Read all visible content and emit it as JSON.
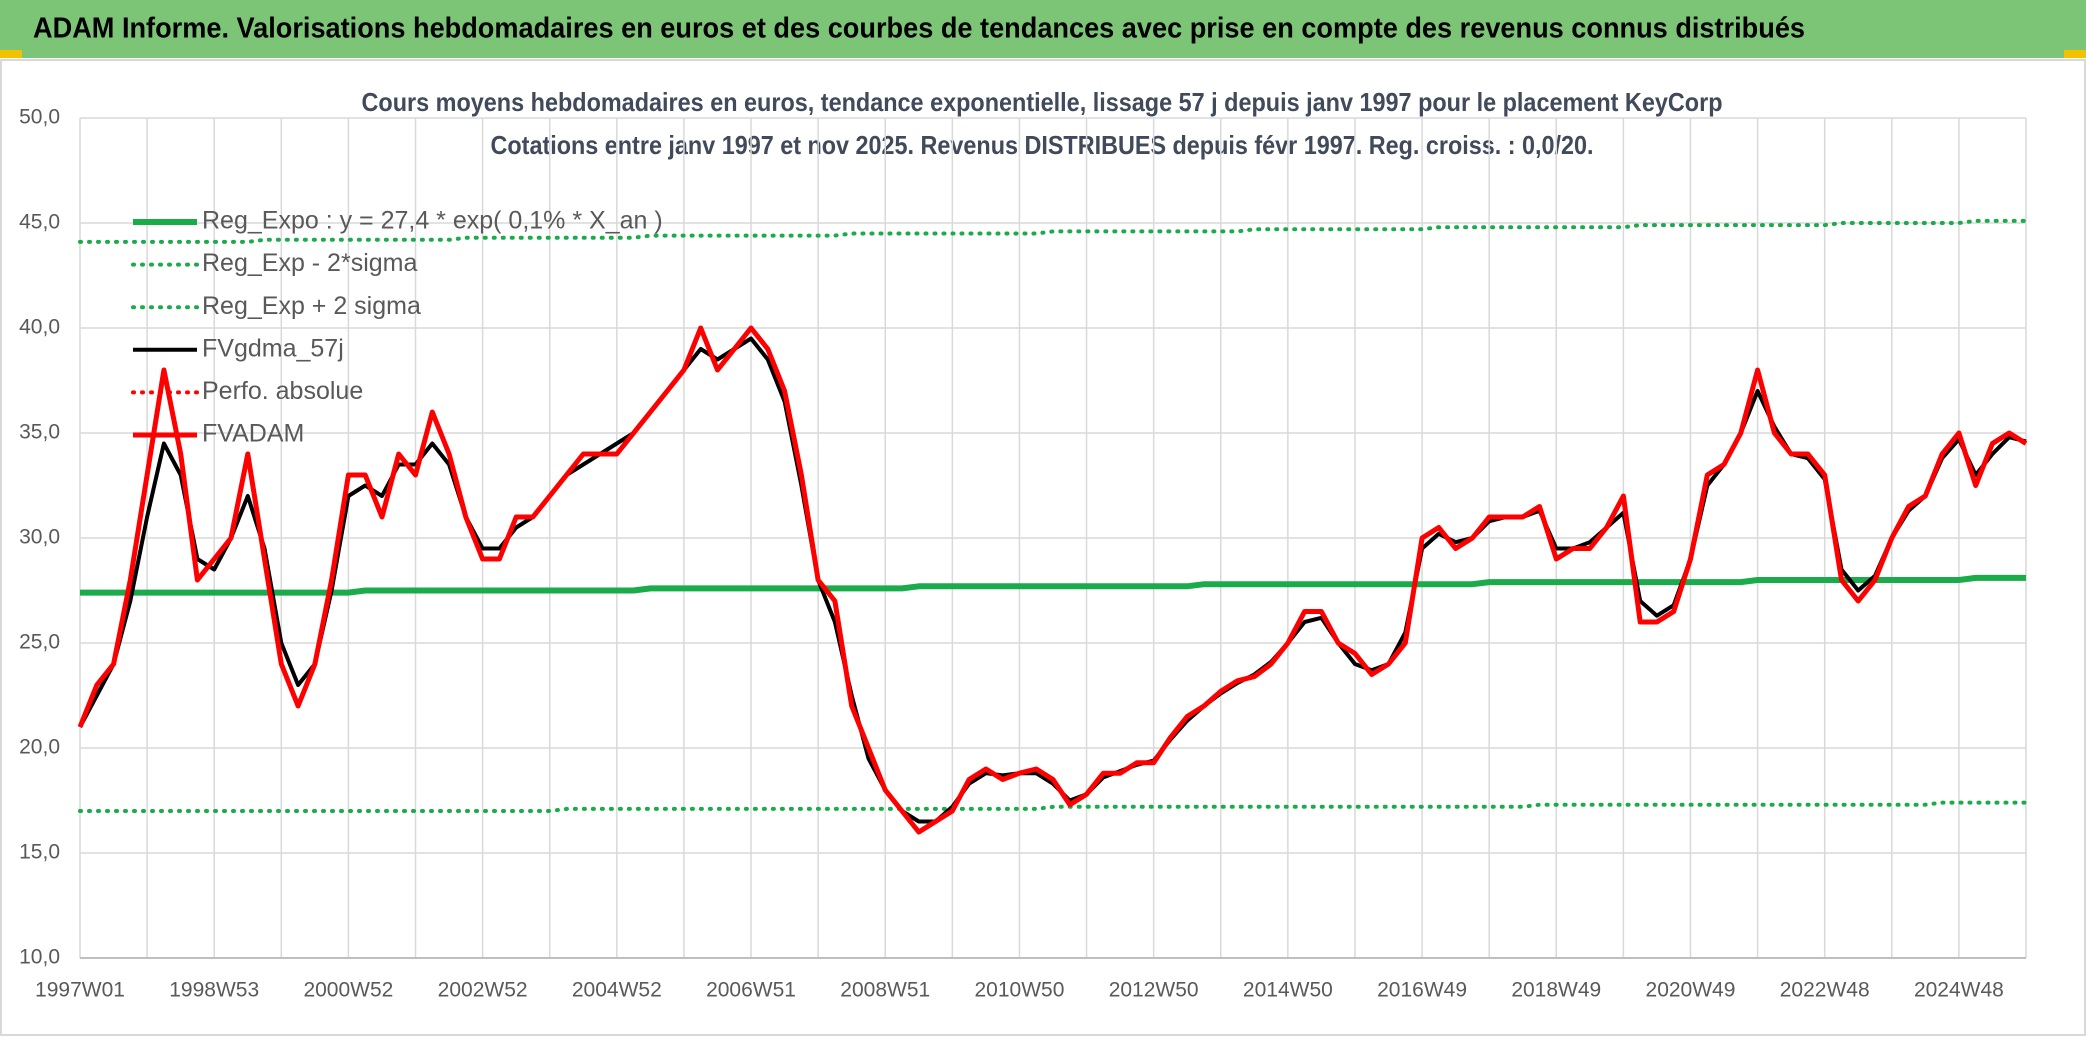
{
  "header": {
    "title": "ADAM Informe. Valorisations hebdomadaires en euros et des courbes de tendances avec prise en compte des revenus connus distribués"
  },
  "chart_data": {
    "type": "line",
    "title": "Cours moyens hebdomadaires en euros, tendance exponentielle, lissage 57 j depuis janv 1997 pour le placement KeyCorp",
    "subtitle": "Cotations entre janv 1997 et nov 2025. Revenus DISTRIBUES depuis févr 1997. Reg. croiss. : 0,0/20.",
    "legend": "upper left",
    "grid": true,
    "ylim": [
      10,
      50
    ],
    "yticks": [
      {
        "value": 10,
        "label": "10,0"
      },
      {
        "value": 15,
        "label": "15,0"
      },
      {
        "value": 20,
        "label": "20,0"
      },
      {
        "value": 25,
        "label": "25,0"
      },
      {
        "value": 30,
        "label": "30,0"
      },
      {
        "value": 35,
        "label": "35,0"
      },
      {
        "value": 40,
        "label": "40,0"
      },
      {
        "value": 45,
        "label": "45,0"
      },
      {
        "value": 50,
        "label": "50,0"
      }
    ],
    "categories": [
      "1997W01",
      null,
      null,
      null,
      null,
      null,
      null,
      null,
      "1998W53",
      null,
      null,
      null,
      null,
      null,
      null,
      null,
      "2000W52",
      null,
      null,
      null,
      null,
      null,
      null,
      null,
      "2002W52",
      null,
      null,
      null,
      null,
      null,
      null,
      null,
      "2004W52",
      null,
      null,
      null,
      null,
      null,
      null,
      null,
      "2006W51",
      null,
      null,
      null,
      null,
      null,
      null,
      null,
      "2008W51",
      null,
      null,
      null,
      null,
      null,
      null,
      null,
      "2010W50",
      null,
      null,
      null,
      null,
      null,
      null,
      null,
      "2012W50",
      null,
      null,
      null,
      null,
      null,
      null,
      null,
      "2014W50",
      null,
      null,
      null,
      null,
      null,
      null,
      null,
      "2016W49",
      null,
      null,
      null,
      null,
      null,
      null,
      null,
      "2018W49",
      null,
      null,
      null,
      null,
      null,
      null,
      null,
      "2020W49",
      null,
      null,
      null,
      null,
      null,
      null,
      null,
      "2022W48",
      null,
      null,
      null,
      null,
      null,
      null,
      null,
      "2024W48",
      null,
      null,
      null,
      null
    ],
    "series": [
      {
        "name": "Reg_Expo : y = 27,4 * exp( 0,1% *  X_an )",
        "color": "#1aab4b",
        "style": "solid",
        "width": 6,
        "values": [
          27.4,
          27.4,
          27.4,
          27.4,
          27.4,
          27.4,
          27.4,
          27.4,
          27.4,
          27.4,
          27.4,
          27.4,
          27.4,
          27.4,
          27.4,
          27.4,
          27.4,
          27.5,
          27.5,
          27.5,
          27.5,
          27.5,
          27.5,
          27.5,
          27.5,
          27.5,
          27.5,
          27.5,
          27.5,
          27.5,
          27.5,
          27.5,
          27.5,
          27.5,
          27.6,
          27.6,
          27.6,
          27.6,
          27.6,
          27.6,
          27.6,
          27.6,
          27.6,
          27.6,
          27.6,
          27.6,
          27.6,
          27.6,
          27.6,
          27.6,
          27.7,
          27.7,
          27.7,
          27.7,
          27.7,
          27.7,
          27.7,
          27.7,
          27.7,
          27.7,
          27.7,
          27.7,
          27.7,
          27.7,
          27.7,
          27.7,
          27.7,
          27.8,
          27.8,
          27.8,
          27.8,
          27.8,
          27.8,
          27.8,
          27.8,
          27.8,
          27.8,
          27.8,
          27.8,
          27.8,
          27.8,
          27.8,
          27.8,
          27.8,
          27.9,
          27.9,
          27.9,
          27.9,
          27.9,
          27.9,
          27.9,
          27.9,
          27.9,
          27.9,
          27.9,
          27.9,
          27.9,
          27.9,
          27.9,
          27.9,
          28.0,
          28.0,
          28.0,
          28.0,
          28.0,
          28.0,
          28.0,
          28.0,
          28.0,
          28.0,
          28.0,
          28.0,
          28.0,
          28.1,
          28.1,
          28.1,
          28.1
        ]
      },
      {
        "name": "Reg_Exp - 2*sigma",
        "color": "#1aab4b",
        "style": "dotted",
        "width": 4,
        "values": [
          17.0,
          17.0,
          17.0,
          17.0,
          17.0,
          17.0,
          17.0,
          17.0,
          17.0,
          17.0,
          17.0,
          17.0,
          17.0,
          17.0,
          17.0,
          17.0,
          17.0,
          17.0,
          17.0,
          17.0,
          17.0,
          17.0,
          17.0,
          17.0,
          17.0,
          17.0,
          17.0,
          17.0,
          17.0,
          17.1,
          17.1,
          17.1,
          17.1,
          17.1,
          17.1,
          17.1,
          17.1,
          17.1,
          17.1,
          17.1,
          17.1,
          17.1,
          17.1,
          17.1,
          17.1,
          17.1,
          17.1,
          17.1,
          17.1,
          17.1,
          17.1,
          17.1,
          17.1,
          17.1,
          17.1,
          17.1,
          17.1,
          17.1,
          17.2,
          17.2,
          17.2,
          17.2,
          17.2,
          17.2,
          17.2,
          17.2,
          17.2,
          17.2,
          17.2,
          17.2,
          17.2,
          17.2,
          17.2,
          17.2,
          17.2,
          17.2,
          17.2,
          17.2,
          17.2,
          17.2,
          17.2,
          17.2,
          17.2,
          17.2,
          17.2,
          17.2,
          17.2,
          17.3,
          17.3,
          17.3,
          17.3,
          17.3,
          17.3,
          17.3,
          17.3,
          17.3,
          17.3,
          17.3,
          17.3,
          17.3,
          17.3,
          17.3,
          17.3,
          17.3,
          17.3,
          17.3,
          17.3,
          17.3,
          17.3,
          17.3,
          17.3,
          17.4,
          17.4,
          17.4,
          17.4,
          17.4,
          17.4
        ]
      },
      {
        "name": "Reg_Exp + 2 sigma",
        "color": "#1aab4b",
        "style": "dotted",
        "width": 4,
        "values": [
          44.1,
          44.1,
          44.1,
          44.1,
          44.1,
          44.1,
          44.1,
          44.1,
          44.1,
          44.1,
          44.1,
          44.2,
          44.2,
          44.2,
          44.2,
          44.2,
          44.2,
          44.2,
          44.2,
          44.2,
          44.2,
          44.2,
          44.2,
          44.3,
          44.3,
          44.3,
          44.3,
          44.3,
          44.3,
          44.3,
          44.3,
          44.3,
          44.3,
          44.3,
          44.4,
          44.4,
          44.4,
          44.4,
          44.4,
          44.4,
          44.4,
          44.4,
          44.4,
          44.4,
          44.4,
          44.4,
          44.5,
          44.5,
          44.5,
          44.5,
          44.5,
          44.5,
          44.5,
          44.5,
          44.5,
          44.5,
          44.5,
          44.5,
          44.6,
          44.6,
          44.6,
          44.6,
          44.6,
          44.6,
          44.6,
          44.6,
          44.6,
          44.6,
          44.6,
          44.6,
          44.7,
          44.7,
          44.7,
          44.7,
          44.7,
          44.7,
          44.7,
          44.7,
          44.7,
          44.7,
          44.7,
          44.8,
          44.8,
          44.8,
          44.8,
          44.8,
          44.8,
          44.8,
          44.8,
          44.8,
          44.8,
          44.8,
          44.8,
          44.9,
          44.9,
          44.9,
          44.9,
          44.9,
          44.9,
          44.9,
          44.9,
          44.9,
          44.9,
          44.9,
          44.9,
          45.0,
          45.0,
          45.0,
          45.0,
          45.0,
          45.0,
          45.0,
          45.0,
          45.1,
          45.1,
          45.1,
          45.1
        ]
      },
      {
        "name": "FVgdma_57j",
        "color": "#000000",
        "style": "solid",
        "width": 4,
        "values": [
          21,
          22.5,
          24,
          27,
          31,
          34.5,
          33,
          29,
          28.5,
          30,
          32,
          29.5,
          25,
          23,
          24,
          27.5,
          32,
          32.5,
          32,
          33.5,
          33.5,
          34.5,
          33.5,
          31,
          29.5,
          29.5,
          30.5,
          31,
          32,
          33,
          33.5,
          34,
          34.5,
          35,
          36,
          37,
          38,
          39,
          38.5,
          39,
          39.5,
          38.5,
          36.5,
          32.5,
          28,
          26,
          22.5,
          19.5,
          18,
          17,
          16.5,
          16.5,
          17.2,
          18.3,
          18.8,
          18.7,
          18.8,
          18.8,
          18.3,
          17.5,
          17.8,
          18.6,
          18.9,
          19.2,
          19.4,
          20.4,
          21.3,
          22,
          22.6,
          23.1,
          23.5,
          24.1,
          25,
          26,
          26.2,
          25,
          24,
          23.7,
          24,
          25.5,
          29.5,
          30.2,
          29.8,
          30,
          30.8,
          31,
          31,
          31.3,
          29.5,
          29.5,
          29.8,
          30.5,
          31.2,
          27,
          26.3,
          26.8,
          29,
          32.5,
          33.5,
          35,
          37,
          35.3,
          34,
          33.8,
          32.8,
          28.5,
          27.5,
          28.2,
          30,
          31.3,
          32,
          33.8,
          34.7,
          33,
          34,
          34.8,
          34.6
        ]
      },
      {
        "name": "Perfo. absolue",
        "color": "#ff0000",
        "style": "dotted",
        "width": 4,
        "values": [
          null,
          null,
          null,
          null,
          null,
          null,
          null,
          null,
          null,
          null,
          null,
          null,
          null,
          null,
          null,
          null,
          null,
          null,
          null,
          null,
          null,
          null,
          null,
          null,
          null,
          null,
          null,
          null,
          null,
          null,
          null,
          null,
          null,
          null,
          null,
          null,
          null,
          null,
          null,
          null,
          null,
          null,
          null,
          null,
          null,
          null,
          null,
          null,
          null,
          null,
          null,
          null,
          null,
          null,
          null,
          null,
          null,
          null,
          null,
          null,
          null,
          null,
          null,
          null,
          null,
          null,
          null,
          null,
          null,
          null,
          null,
          null,
          null,
          null,
          null,
          null,
          null,
          null,
          null,
          null,
          null,
          null,
          null,
          null,
          null,
          null,
          null,
          null,
          null,
          null,
          null,
          null,
          null,
          null,
          null,
          null,
          null,
          null,
          null,
          null,
          null,
          null,
          null,
          null,
          null,
          null,
          null,
          null,
          null,
          null,
          null,
          null,
          null,
          null,
          null,
          null,
          null
        ]
      },
      {
        "name": "FVADAM",
        "color": "#ff0000",
        "style": "solid",
        "width": 5,
        "values": [
          21,
          23,
          24,
          28,
          33,
          38,
          34,
          28,
          29,
          30,
          34,
          29,
          24,
          22,
          24,
          28,
          33,
          33,
          31,
          34,
          33,
          36,
          34,
          31,
          29,
          29,
          31,
          31,
          32,
          33,
          34,
          34,
          34,
          35,
          36,
          37,
          38,
          40,
          38,
          39,
          40,
          39,
          37,
          33,
          28,
          27,
          22,
          20,
          18,
          17,
          16,
          16.5,
          17,
          18.5,
          19,
          18.5,
          18.8,
          19,
          18.5,
          17.3,
          17.8,
          18.8,
          18.8,
          19.3,
          19.3,
          20.5,
          21.5,
          22,
          22.7,
          23.2,
          23.4,
          24,
          25,
          26.5,
          26.5,
          25,
          24.5,
          23.5,
          24,
          25,
          30,
          30.5,
          29.5,
          30,
          31,
          31,
          31,
          31.5,
          29,
          29.5,
          29.5,
          30.5,
          32,
          26,
          26,
          26.5,
          29,
          33,
          33.5,
          35,
          38,
          35,
          34,
          34,
          33,
          28,
          27,
          28,
          30,
          31.5,
          32,
          34,
          35,
          32.5,
          34.5,
          35,
          34.5
        ]
      }
    ]
  }
}
